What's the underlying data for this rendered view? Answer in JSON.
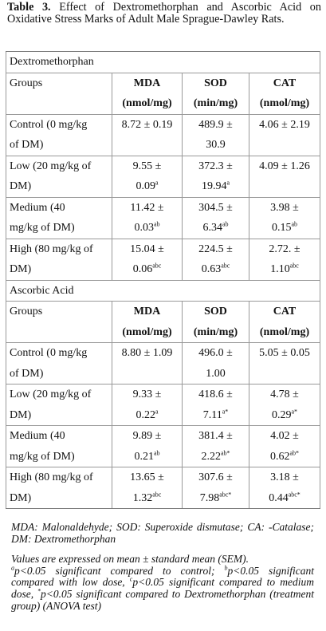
{
  "caption": {
    "label": "Table 3.",
    "text": " Effect of Dextromethorphan and Ascorbic Acid on Oxidative Stress Marks of Adult Male Sprague-Dawley Rats."
  },
  "sections": [
    {
      "title": "Dextromethorphan",
      "headers": {
        "groups": "Groups",
        "mda": "MDA",
        "sod": "SOD",
        "cat": "CAT",
        "mda_unit": "(nmol/mg)",
        "sod_unit": "(min/mg)",
        "cat_unit": "(nmol/mg)"
      },
      "rows": [
        {
          "group_line1": "Control (0 mg/kg",
          "group_line2": "of DM)",
          "mda_line1": "8.72 ± 0.19",
          "mda_line2": "",
          "mda_sup": "",
          "sod_line1": "489.9 ±",
          "sod_line2": "30.9",
          "sod_sup": "",
          "cat_line1": "4.06 ± 2.19",
          "cat_line2": "",
          "cat_sup": ""
        },
        {
          "group_line1": "Low (20 mg/kg of",
          "group_line2": "DM)",
          "mda_line1": "9.55 ±",
          "mda_line2": "0.09",
          "mda_sup": "a",
          "sod_line1": "372.3 ±",
          "sod_line2": "19.94",
          "sod_sup": "a",
          "cat_line1": "4.09 ± 1.26",
          "cat_line2": "",
          "cat_sup": ""
        },
        {
          "group_line1": "Medium (40",
          "group_line2": "mg/kg of DM)",
          "mda_line1": "11.42 ±",
          "mda_line2": "0.03",
          "mda_sup": "ab",
          "sod_line1": "304.5 ±",
          "sod_line2": "6.34",
          "sod_sup": "ab",
          "cat_line1": "3.98 ±",
          "cat_line2": "0.15",
          "cat_sup": "ab"
        },
        {
          "group_line1": "High (80 mg/kg of",
          "group_line2": "DM)",
          "mda_line1": "15.04 ±",
          "mda_line2": "0.06",
          "mda_sup": "abc",
          "sod_line1": "224.5 ±",
          "sod_line2": "0.63",
          "sod_sup": "abc",
          "cat_line1": "2.72. ±",
          "cat_line2": "1.10",
          "cat_sup": "abc"
        }
      ]
    },
    {
      "title": "Ascorbic Acid",
      "headers": {
        "groups": "Groups",
        "mda": "MDA",
        "sod": "SOD",
        "cat": "CAT",
        "mda_unit": "(nmol/mg)",
        "sod_unit": "(min/mg)",
        "cat_unit": "(nmol/mg)"
      },
      "rows": [
        {
          "group_line1": "Control (0 mg/kg",
          "group_line2": "of DM)",
          "mda_line1": "8.80 ± 1.09",
          "mda_line2": "",
          "mda_sup": "",
          "sod_line1": "496.0 ±",
          "sod_line2": "1.00",
          "sod_sup": "",
          "cat_line1": "5.05 ± 0.05",
          "cat_line2": "",
          "cat_sup": ""
        },
        {
          "group_line1": "Low (20 mg/kg of",
          "group_line2": "DM)",
          "mda_line1": "9.33 ±",
          "mda_line2": "0.22",
          "mda_sup": "a",
          "sod_line1": "418.6 ±",
          "sod_line2": "7.11",
          "sod_sup": "a*",
          "cat_line1": "4.78 ±",
          "cat_line2": "0.29",
          "cat_sup": "a*"
        },
        {
          "group_line1": "Medium (40",
          "group_line2": "mg/kg of DM)",
          "mda_line1": "9.89 ±",
          "mda_line2": "0.21",
          "mda_sup": "ab",
          "sod_line1": "381.4 ±",
          "sod_line2": "2.22",
          "sod_sup": "ab*",
          "cat_line1": "4.02 ±",
          "cat_line2": "0.62",
          "cat_sup": "ab*"
        },
        {
          "group_line1": "High (80 mg/kg of",
          "group_line2": "DM)",
          "mda_line1": "13.65 ±",
          "mda_line2": "1.32",
          "mda_sup": "abc",
          "sod_line1": "307.6 ±",
          "sod_line2": "7.98",
          "sod_sup": "abc*",
          "cat_line1": "3.18 ±",
          "cat_line2": "0.44",
          "cat_sup": "abc*"
        }
      ]
    }
  ],
  "footnote": {
    "abbreviations": "MDA: Malonaldehyde; SOD: Superoxide dismutase; CA: -Catalase; DM: Dextromethorphan",
    "values_text": "Values are expressed on mean ± standard mean (SEM).",
    "sig_a_sup": "a",
    "sig_a_text": "p<0.05 significant compared to control; ",
    "sig_b_sup": "b",
    "sig_b_text": "p<0.05 significant compared with low dose, ",
    "sig_c_sup": "c",
    "sig_c_text": "p<0.05 significant compared to medium dose, ",
    "sig_star_sup": "*",
    "sig_star_text": "p<0.05 significant compared to Dextromethorphan (treatment group) (ANOVA test)"
  }
}
